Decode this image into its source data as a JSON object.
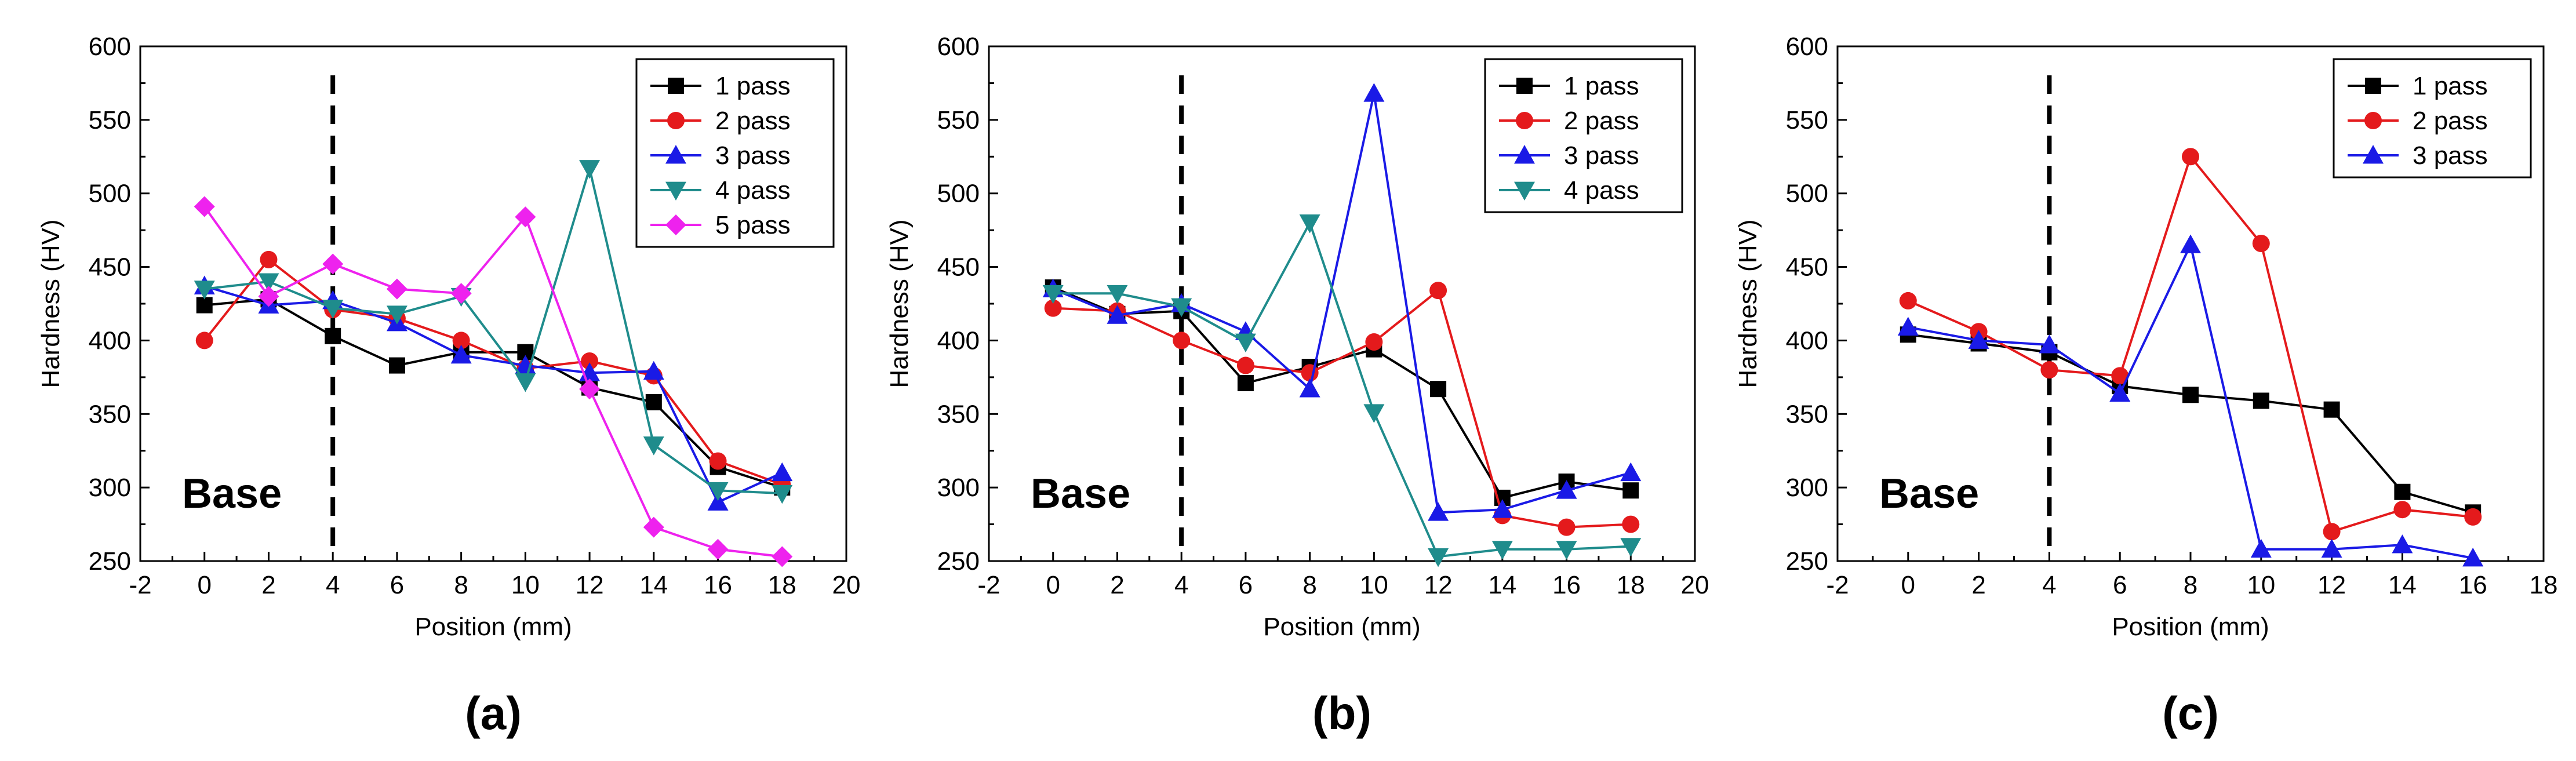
{
  "chart_data": [
    {
      "type": "line",
      "panel_label": "(a)",
      "xlabel": "Position (mm)",
      "ylabel": "Hardness (HV)",
      "xlim": [
        -2,
        20
      ],
      "ylim": [
        250,
        600
      ],
      "xticks": [
        -2,
        0,
        2,
        4,
        6,
        8,
        10,
        12,
        14,
        16,
        18,
        20
      ],
      "yticks": [
        250,
        300,
        350,
        400,
        450,
        500,
        550,
        600
      ],
      "annotation": "Base",
      "divider_x": 4,
      "legend_position": "top-right",
      "series": [
        {
          "name": "1 pass",
          "color": "#000000",
          "marker": "square",
          "x": [
            0,
            2,
            4,
            6,
            8,
            10,
            12,
            14,
            16,
            18
          ],
          "values": [
            424,
            428,
            403,
            383,
            392,
            392,
            368,
            358,
            314,
            300
          ]
        },
        {
          "name": "2 pass",
          "color": "#e41a1c",
          "marker": "circle",
          "x": [
            0,
            2,
            4,
            6,
            8,
            10,
            12,
            14,
            16,
            18
          ],
          "values": [
            400,
            455,
            421,
            415,
            400,
            381,
            386,
            376,
            318,
            302
          ]
        },
        {
          "name": "3 pass",
          "color": "#1a1ae6",
          "marker": "triangle-up",
          "x": [
            0,
            2,
            4,
            6,
            8,
            10,
            12,
            14,
            16,
            18
          ],
          "values": [
            437,
            424,
            427,
            412,
            390,
            383,
            378,
            379,
            290,
            310
          ]
        },
        {
          "name": "4 pass",
          "color": "#1f8c8c",
          "marker": "triangle-down",
          "x": [
            0,
            2,
            4,
            6,
            8,
            10,
            12,
            14,
            16,
            18
          ],
          "values": [
            435,
            440,
            422,
            418,
            430,
            372,
            517,
            329,
            298,
            296
          ]
        },
        {
          "name": "5 pass",
          "color": "#ee22ee",
          "marker": "diamond",
          "x": [
            0,
            2,
            4,
            6,
            8,
            10,
            12,
            14,
            16,
            18
          ],
          "values": [
            491,
            430,
            452,
            435,
            432,
            484,
            367,
            273,
            258,
            253
          ]
        }
      ]
    },
    {
      "type": "line",
      "panel_label": "(b)",
      "xlabel": "Position (mm)",
      "ylabel": "Hardness (HV)",
      "xlim": [
        -2,
        20
      ],
      "ylim": [
        250,
        600
      ],
      "xticks": [
        -2,
        0,
        2,
        4,
        6,
        8,
        10,
        12,
        14,
        16,
        18,
        20
      ],
      "yticks": [
        250,
        300,
        350,
        400,
        450,
        500,
        550,
        600
      ],
      "annotation": "Base",
      "divider_x": 4,
      "legend_position": "top-right",
      "series": [
        {
          "name": "1 pass",
          "color": "#000000",
          "marker": "square",
          "x": [
            0,
            2,
            4,
            6,
            8,
            10,
            12,
            14,
            16,
            18
          ],
          "values": [
            436,
            418,
            420,
            371,
            382,
            394,
            367,
            293,
            304,
            298
          ]
        },
        {
          "name": "2 pass",
          "color": "#e41a1c",
          "marker": "circle",
          "x": [
            0,
            2,
            4,
            6,
            8,
            10,
            12,
            14,
            16,
            18
          ],
          "values": [
            422,
            420,
            400,
            383,
            378,
            399,
            434,
            281,
            273,
            275
          ]
        },
        {
          "name": "3 pass",
          "color": "#1a1ae6",
          "marker": "triangle-up",
          "x": [
            0,
            2,
            4,
            6,
            8,
            10,
            12,
            14,
            16,
            18
          ],
          "values": [
            435,
            417,
            425,
            406,
            367,
            568,
            283,
            285,
            298,
            310
          ]
        },
        {
          "name": "4 pass",
          "color": "#1f8c8c",
          "marker": "triangle-down",
          "x": [
            0,
            2,
            4,
            6,
            8,
            10,
            12,
            14,
            16,
            18
          ],
          "values": [
            432,
            432,
            423,
            399,
            480,
            351,
            253,
            258,
            258,
            260
          ]
        }
      ]
    },
    {
      "type": "line",
      "panel_label": "(c)",
      "xlabel": "Position (mm)",
      "ylabel": "Hardness (HV)",
      "xlim": [
        -2,
        18
      ],
      "ylim": [
        250,
        600
      ],
      "xticks": [
        -2,
        0,
        2,
        4,
        6,
        8,
        10,
        12,
        14,
        16,
        18
      ],
      "yticks": [
        250,
        300,
        350,
        400,
        450,
        500,
        550,
        600
      ],
      "annotation": "Base",
      "divider_x": 4,
      "legend_position": "top-right",
      "series": [
        {
          "name": "1 pass",
          "color": "#000000",
          "marker": "square",
          "x": [
            0,
            2,
            4,
            6,
            8,
            10,
            12,
            14,
            16
          ],
          "values": [
            404,
            398,
            392,
            369,
            363,
            359,
            353,
            297,
            283
          ]
        },
        {
          "name": "2 pass",
          "color": "#e41a1c",
          "marker": "circle",
          "x": [
            0,
            2,
            4,
            6,
            8,
            10,
            12,
            14,
            16
          ],
          "values": [
            427,
            406,
            380,
            376,
            525,
            466,
            270,
            285,
            280
          ]
        },
        {
          "name": "3 pass",
          "color": "#1a1ae6",
          "marker": "triangle-up",
          "x": [
            0,
            2,
            4,
            6,
            8,
            10,
            12,
            14,
            16
          ],
          "values": [
            409,
            400,
            397,
            364,
            465,
            258,
            258,
            261,
            252
          ]
        }
      ]
    }
  ]
}
